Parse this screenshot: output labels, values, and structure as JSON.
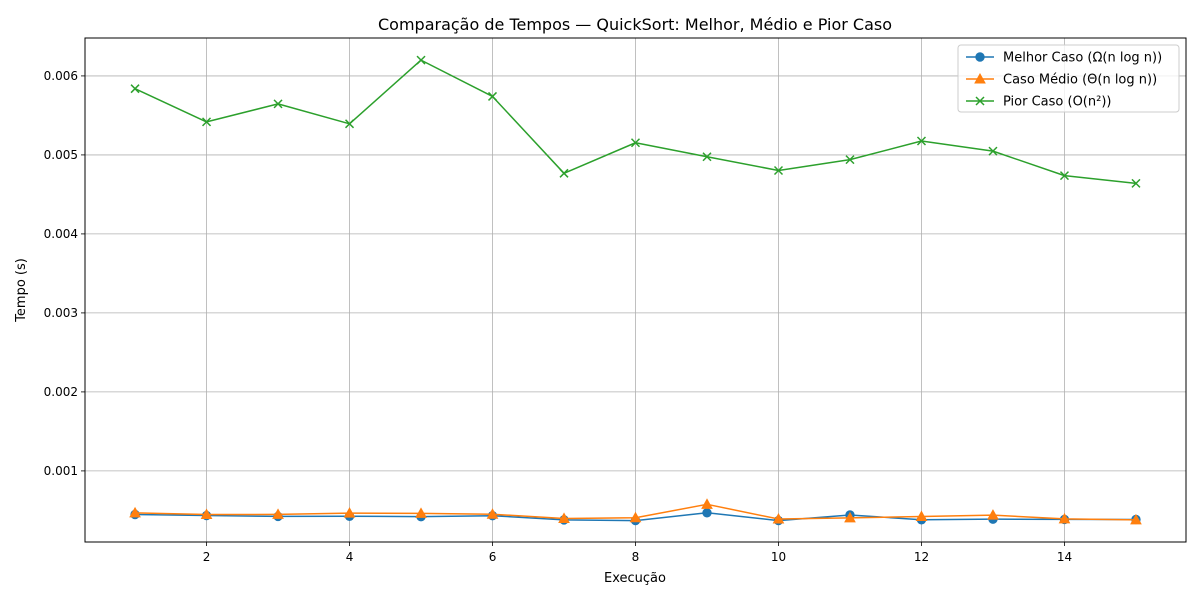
{
  "chart_data": {
    "type": "line",
    "title": "Comparação de Tempos — QuickSort: Melhor, Médio e Pior Caso",
    "xlabel": "Execução",
    "ylabel": "Tempo (s)",
    "xlim": [
      0.3,
      15.7
    ],
    "ylim": [
      0.0001,
      0.00648
    ],
    "xticks": [
      2,
      4,
      6,
      8,
      10,
      12,
      14
    ],
    "yticks": [
      0.001,
      0.002,
      0.003,
      0.004,
      0.005,
      0.006
    ],
    "xtick_labels": [
      "2",
      "4",
      "6",
      "8",
      "10",
      "12",
      "14"
    ],
    "ytick_labels": [
      "0.001",
      "0.002",
      "0.003",
      "0.004",
      "0.005",
      "0.006"
    ],
    "grid": true,
    "legend_position": "top-right",
    "x": [
      1,
      2,
      3,
      4,
      5,
      6,
      7,
      8,
      9,
      10,
      11,
      12,
      13,
      14,
      15
    ],
    "series": [
      {
        "name": "Melhor Caso (Ω(n log n))",
        "color": "#1f77b4",
        "marker": "circle",
        "values": [
          0.000448,
          0.000435,
          0.000424,
          0.000426,
          0.000421,
          0.000433,
          0.00038,
          0.000371,
          0.00047,
          0.000371,
          0.000442,
          0.000381,
          0.000389,
          0.000386,
          0.000385
        ]
      },
      {
        "name": "Caso Médio (Θ(n log n))",
        "color": "#ff7f0e",
        "marker": "triangle",
        "values": [
          0.000469,
          0.000448,
          0.000449,
          0.000465,
          0.000462,
          0.000451,
          0.000398,
          0.000407,
          0.000577,
          0.000391,
          0.000406,
          0.000423,
          0.00044,
          0.000392,
          0.00038
        ]
      },
      {
        "name": "Pior Caso (O(n²))",
        "color": "#2ca02c",
        "marker": "x",
        "values": [
          0.005838,
          0.005418,
          0.005646,
          0.005394,
          0.0062,
          0.00574,
          0.004767,
          0.005154,
          0.004977,
          0.004803,
          0.00494,
          0.005176,
          0.005048,
          0.004738,
          0.00464
        ]
      }
    ]
  }
}
